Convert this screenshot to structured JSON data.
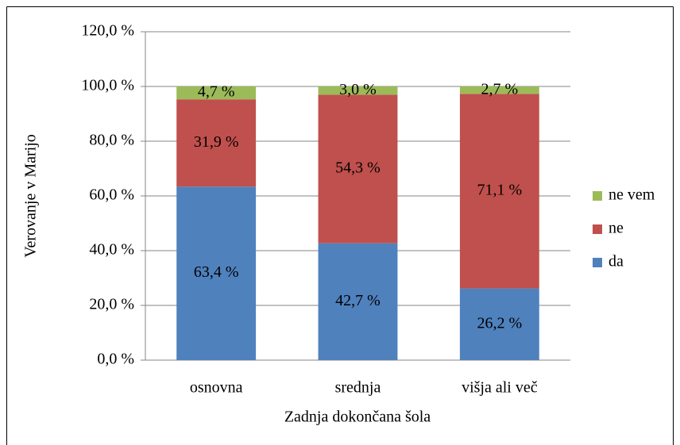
{
  "chart_data": {
    "type": "stacked_bar",
    "xlabel": "Zadnja dokončana šola",
    "ylabel": "Verovanje v Marijo",
    "categories": [
      "osnovna",
      "srednja",
      "višja ali več"
    ],
    "series": [
      {
        "name": "da",
        "color": "#4f81bd",
        "values": [
          63.4,
          42.7,
          26.2
        ],
        "value_labels": [
          "63,4 %",
          "42,7 %",
          "26,2 %"
        ]
      },
      {
        "name": "ne",
        "color": "#c0504d",
        "values": [
          31.9,
          54.3,
          71.1
        ],
        "value_labels": [
          "31,9 %",
          "54,3 %",
          "71,1 %"
        ]
      },
      {
        "name": "ne vem",
        "color": "#9bbb59",
        "values": [
          4.7,
          3.0,
          2.7
        ],
        "value_labels": [
          "4,7 %",
          "3,0 %",
          "2,7 %"
        ]
      }
    ],
    "ylim": [
      0,
      120
    ],
    "yticks": [
      {
        "value": 0,
        "label": "0,0 %"
      },
      {
        "value": 20,
        "label": "20,0 %"
      },
      {
        "value": 40,
        "label": "40,0 %"
      },
      {
        "value": 60,
        "label": "60,0 %"
      },
      {
        "value": 80,
        "label": "80,0 %"
      },
      {
        "value": 100,
        "label": "100,0 %"
      },
      {
        "value": 120,
        "label": "120,0 %"
      }
    ],
    "grid": true,
    "legend": "right"
  }
}
